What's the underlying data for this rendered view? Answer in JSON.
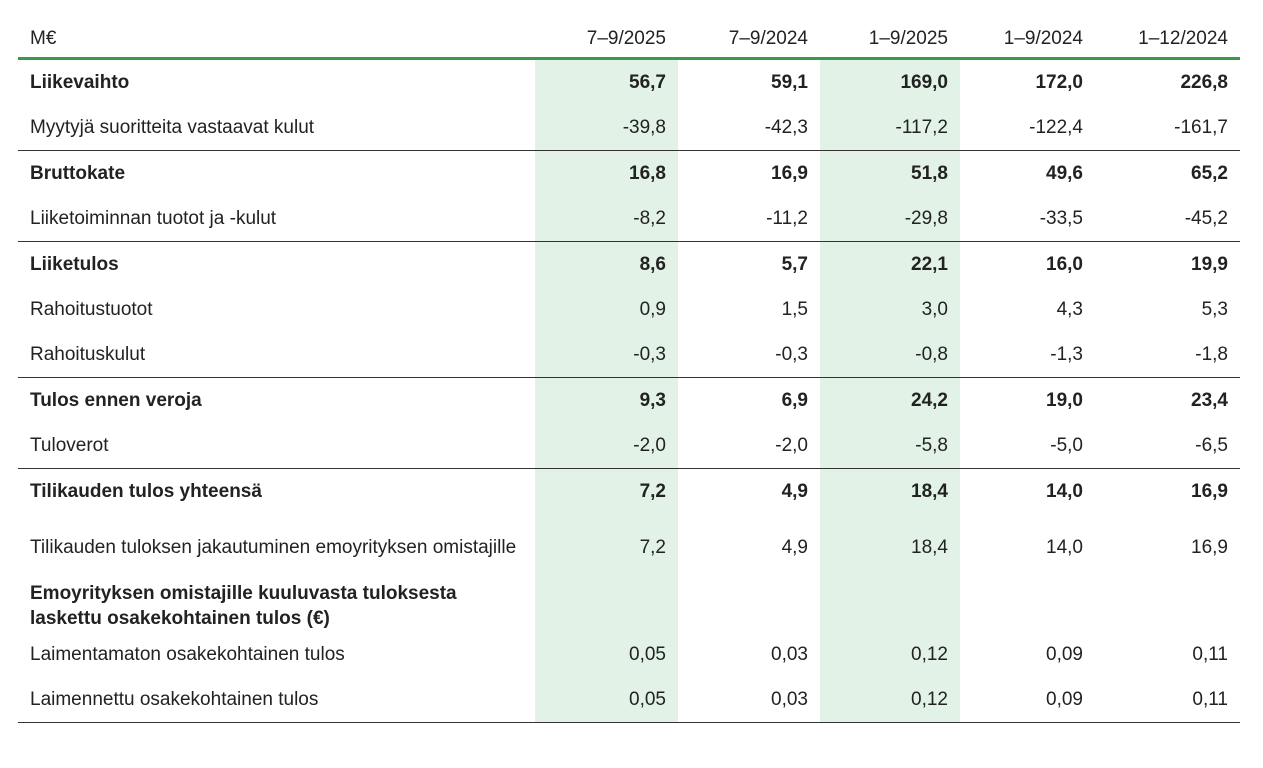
{
  "table": {
    "header": [
      "M€",
      "7–9/2025",
      "7–9/2024",
      "1–9/2025",
      "1–9/2024",
      "1–12/2024"
    ],
    "rows": [
      {
        "label": "Liikevaihto",
        "values": [
          "56,7",
          "59,1",
          "169,0",
          "172,0",
          "226,8"
        ]
      },
      {
        "label": "Myytyjä suoritteita vastaavat kulut",
        "values": [
          "-39,8",
          "-42,3",
          "-117,2",
          "-122,4",
          "-161,7"
        ]
      },
      {
        "label": "Bruttokate",
        "values": [
          "16,8",
          "16,9",
          "51,8",
          "49,6",
          "65,2"
        ]
      },
      {
        "label": "Liiketoiminnan tuotot ja -kulut",
        "values": [
          "-8,2",
          "-11,2",
          "-29,8",
          "-33,5",
          "-45,2"
        ]
      },
      {
        "label": "Liiketulos",
        "values": [
          "8,6",
          "5,7",
          "22,1",
          "16,0",
          "19,9"
        ]
      },
      {
        "label": "Rahoitustuotot",
        "values": [
          "0,9",
          "1,5",
          "3,0",
          "4,3",
          "5,3"
        ]
      },
      {
        "label": "Rahoituskulut",
        "values": [
          "-0,3",
          "-0,3",
          "-0,8",
          "-1,3",
          "-1,8"
        ]
      },
      {
        "label": "Tulos ennen veroja",
        "values": [
          "9,3",
          "6,9",
          "24,2",
          "19,0",
          "23,4"
        ]
      },
      {
        "label": "Tuloverot",
        "values": [
          "-2,0",
          "-2,0",
          "-5,8",
          "-5,0",
          "-6,5"
        ]
      },
      {
        "label": "Tilikauden tulos yhteensä",
        "values": [
          "7,2",
          "4,9",
          "18,4",
          "14,0",
          "16,9"
        ]
      },
      {
        "label": "Tilikauden tuloksen jakautuminen emoyrityksen omistajille",
        "values": [
          "7,2",
          "4,9",
          "18,4",
          "14,0",
          "16,9"
        ]
      },
      {
        "label": "Emoyrityksen omistajille  kuuluvasta tuloksesta laskettu osakekohtainen tulos (€)"
      },
      {
        "label": "Laimentamaton osakekohtainen tulos",
        "values": [
          "0,05",
          "0,03",
          "0,12",
          "0,09",
          "0,11"
        ]
      },
      {
        "label": "Laimennettu osakekohtainen tulos",
        "values": [
          "0,05",
          "0,03",
          "0,12",
          "0,09",
          "0,11"
        ]
      }
    ]
  }
}
